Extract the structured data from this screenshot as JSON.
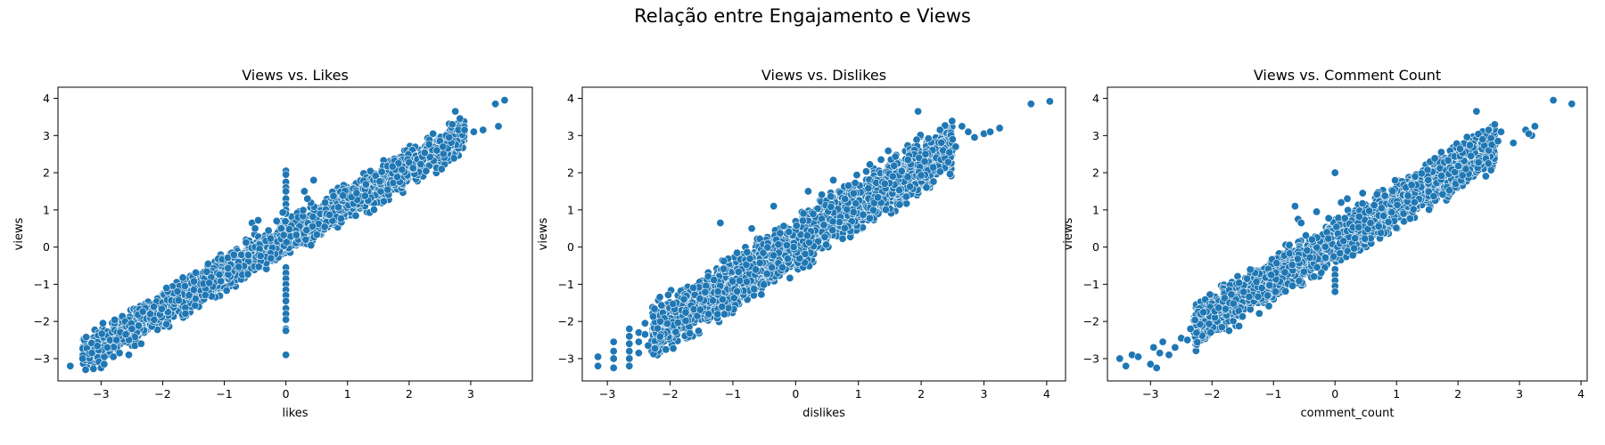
{
  "figure": {
    "suptitle": "Relação entre Engajamento e Views"
  },
  "style": {
    "point_color": "#1f77b4",
    "point_edge": "#ffffff"
  },
  "chart_data": [
    {
      "type": "scatter",
      "title": "Views vs. Likes",
      "xlabel": "likes",
      "ylabel": "views",
      "xlim": [
        -3.7,
        4.0
      ],
      "ylim": [
        -3.6,
        4.3
      ],
      "xticks": [
        {
          "v": -3,
          "label": "−3"
        },
        {
          "v": -2,
          "label": "−2"
        },
        {
          "v": -1,
          "label": "−1"
        },
        {
          "v": 0,
          "label": "0"
        },
        {
          "v": 1,
          "label": "1"
        },
        {
          "v": 2,
          "label": "2"
        },
        {
          "v": 3,
          "label": "3"
        }
      ],
      "yticks": [
        {
          "v": -3,
          "label": "−3"
        },
        {
          "v": -2,
          "label": "−2"
        },
        {
          "v": -1,
          "label": "−1"
        },
        {
          "v": 0,
          "label": "0"
        },
        {
          "v": 1,
          "label": "1"
        },
        {
          "v": 2,
          "label": "2"
        },
        {
          "v": 3,
          "label": "3"
        },
        {
          "v": 4,
          "label": "4"
        }
      ],
      "band": {
        "slope": 0.95,
        "intercept": 0.25,
        "spread": 0.22,
        "x_from": -3.3,
        "x_to": 2.9
      },
      "points": [
        [
          -3.5,
          -3.2
        ],
        [
          -3.3,
          -3.0
        ],
        [
          -3.15,
          -2.85
        ],
        [
          -3.0,
          -3.25
        ],
        [
          -2.95,
          -3.15
        ],
        [
          -2.9,
          -2.7
        ],
        [
          -2.8,
          -2.95
        ],
        [
          -2.75,
          -2.5
        ],
        [
          -2.7,
          -2.85
        ],
        [
          -2.6,
          -2.35
        ],
        [
          -2.55,
          -2.9
        ],
        [
          -2.5,
          -2.2
        ],
        [
          -2.45,
          -2.65
        ],
        [
          -2.35,
          -2.6
        ],
        [
          0,
          2.05
        ],
        [
          0,
          1.95
        ],
        [
          0,
          1.75
        ],
        [
          0,
          1.6
        ],
        [
          0,
          1.5
        ],
        [
          0,
          1.3
        ],
        [
          0,
          1.15
        ],
        [
          0,
          1.0
        ],
        [
          0,
          0.9
        ],
        [
          0,
          -0.55
        ],
        [
          0,
          -0.7
        ],
        [
          0,
          -0.85
        ],
        [
          0,
          -1.0
        ],
        [
          0,
          -1.15
        ],
        [
          0,
          -1.3
        ],
        [
          0,
          -1.45
        ],
        [
          0,
          -1.65
        ],
        [
          0,
          -1.8
        ],
        [
          0,
          -1.95
        ],
        [
          0,
          -2.2
        ],
        [
          0,
          -2.25
        ],
        [
          0,
          -2.9
        ],
        [
          -0.55,
          0.65
        ],
        [
          -0.45,
          0.72
        ],
        [
          -0.5,
          0.5
        ],
        [
          -0.15,
          0.7
        ],
        [
          -0.05,
          0.93
        ],
        [
          0.3,
          1.5
        ],
        [
          0.35,
          1.3
        ],
        [
          0.45,
          1.8
        ],
        [
          2.6,
          3.0
        ],
        [
          2.7,
          3.3
        ],
        [
          2.75,
          3.65
        ],
        [
          2.8,
          3.15
        ],
        [
          2.9,
          3.15
        ],
        [
          3.05,
          3.1
        ],
        [
          3.2,
          3.15
        ],
        [
          3.4,
          3.85
        ],
        [
          3.45,
          3.25
        ],
        [
          3.55,
          3.95
        ],
        [
          2.45,
          2.6
        ],
        [
          2.5,
          2.85
        ],
        [
          2.55,
          2.7
        ],
        [
          2.65,
          2.95
        ]
      ]
    },
    {
      "type": "scatter",
      "title": "Views vs. Dislikes",
      "xlabel": "dislikes",
      "ylabel": "views",
      "xlim": [
        -3.4,
        4.3
      ],
      "ylim": [
        -3.6,
        4.3
      ],
      "xticks": [
        {
          "v": -3,
          "label": "−3"
        },
        {
          "v": -2,
          "label": "−2"
        },
        {
          "v": -1,
          "label": "−1"
        },
        {
          "v": 0,
          "label": "0"
        },
        {
          "v": 1,
          "label": "1"
        },
        {
          "v": 2,
          "label": "2"
        },
        {
          "v": 3,
          "label": "3"
        },
        {
          "v": 4,
          "label": "4"
        }
      ],
      "yticks": [
        {
          "v": -3,
          "label": "−3"
        },
        {
          "v": -2,
          "label": "−2"
        },
        {
          "v": -1,
          "label": "−1"
        },
        {
          "v": 0,
          "label": "0"
        },
        {
          "v": 1,
          "label": "1"
        },
        {
          "v": 2,
          "label": "2"
        },
        {
          "v": 3,
          "label": "3"
        },
        {
          "v": 4,
          "label": "4"
        }
      ],
      "band": {
        "slope": 1.05,
        "intercept": 0.1,
        "spread": 0.32,
        "x_from": -2.3,
        "x_to": 2.5
      },
      "points": [
        [
          -3.15,
          -2.95
        ],
        [
          -3.15,
          -3.2
        ],
        [
          -2.9,
          -2.55
        ],
        [
          -2.9,
          -2.8
        ],
        [
          -2.9,
          -3.0
        ],
        [
          -2.9,
          -3.25
        ],
        [
          -2.65,
          -2.2
        ],
        [
          -2.65,
          -2.4
        ],
        [
          -2.65,
          -2.6
        ],
        [
          -2.65,
          -2.8
        ],
        [
          -2.65,
          -3.0
        ],
        [
          -2.65,
          -3.2
        ],
        [
          -2.5,
          -2.3
        ],
        [
          -2.5,
          -2.55
        ],
        [
          -2.5,
          -2.85
        ],
        [
          -2.4,
          -2.05
        ],
        [
          -2.4,
          -2.35
        ],
        [
          -2.35,
          -2.65
        ],
        [
          -1.2,
          0.65
        ],
        [
          -0.7,
          0.5
        ],
        [
          -0.35,
          1.1
        ],
        [
          0.2,
          1.5
        ],
        [
          0.6,
          1.8
        ],
        [
          1.95,
          3.65
        ],
        [
          2.3,
          3.15
        ],
        [
          2.5,
          2.9
        ],
        [
          2.65,
          3.25
        ],
        [
          2.75,
          3.1
        ],
        [
          2.85,
          2.95
        ],
        [
          3.0,
          3.05
        ],
        [
          3.1,
          3.1
        ],
        [
          3.25,
          3.2
        ],
        [
          3.75,
          3.85
        ],
        [
          4.05,
          3.92
        ],
        [
          2.35,
          2.6
        ],
        [
          2.45,
          2.55
        ],
        [
          2.55,
          2.7
        ]
      ]
    },
    {
      "type": "scatter",
      "title": "Views vs. Comment Count",
      "xlabel": "comment_count",
      "ylabel": "views",
      "xlim": [
        -3.7,
        4.1
      ],
      "ylim": [
        -3.6,
        4.3
      ],
      "xticks": [
        {
          "v": -3,
          "label": "−3"
        },
        {
          "v": -2,
          "label": "−2"
        },
        {
          "v": -1,
          "label": "−1"
        },
        {
          "v": 0,
          "label": "0"
        },
        {
          "v": 1,
          "label": "1"
        },
        {
          "v": 2,
          "label": "2"
        },
        {
          "v": 3,
          "label": "3"
        },
        {
          "v": 4,
          "label": "4"
        }
      ],
      "yticks": [
        {
          "v": -3,
          "label": "−3"
        },
        {
          "v": -2,
          "label": "−2"
        },
        {
          "v": -1,
          "label": "−1"
        },
        {
          "v": 0,
          "label": "0"
        },
        {
          "v": 1,
          "label": "1"
        },
        {
          "v": 2,
          "label": "2"
        },
        {
          "v": 3,
          "label": "3"
        },
        {
          "v": 4,
          "label": "4"
        }
      ],
      "band": {
        "slope": 1.0,
        "intercept": 0.15,
        "spread": 0.26,
        "x_from": -2.3,
        "x_to": 2.6
      },
      "points": [
        [
          -3.5,
          -3.0
        ],
        [
          -3.4,
          -3.2
        ],
        [
          -3.3,
          -2.9
        ],
        [
          -3.2,
          -2.95
        ],
        [
          -3.0,
          -3.15
        ],
        [
          -2.95,
          -2.7
        ],
        [
          -2.9,
          -3.25
        ],
        [
          -2.85,
          -2.85
        ],
        [
          -2.8,
          -2.55
        ],
        [
          -2.7,
          -2.9
        ],
        [
          -2.6,
          -2.7
        ],
        [
          -2.5,
          -2.45
        ],
        [
          -2.4,
          -2.5
        ],
        [
          -2.35,
          -2.2
        ],
        [
          0,
          -0.6
        ],
        [
          0,
          -0.75
        ],
        [
          0,
          -0.9
        ],
        [
          0,
          -1.05
        ],
        [
          0,
          -1.2
        ],
        [
          0,
          2.0
        ],
        [
          0.2,
          1.3
        ],
        [
          0.1,
          1.2
        ],
        [
          -0.65,
          1.1
        ],
        [
          -0.6,
          0.75
        ],
        [
          -0.55,
          0.65
        ],
        [
          -0.3,
          0.95
        ],
        [
          0.45,
          1.45
        ],
        [
          2.3,
          3.65
        ],
        [
          2.4,
          2.9
        ],
        [
          2.7,
          3.1
        ],
        [
          2.9,
          2.8
        ],
        [
          3.1,
          3.15
        ],
        [
          3.2,
          3.0
        ],
        [
          3.25,
          3.25
        ],
        [
          3.15,
          3.05
        ],
        [
          3.55,
          3.95
        ],
        [
          3.85,
          3.85
        ],
        [
          2.5,
          2.6
        ],
        [
          2.55,
          2.75
        ],
        [
          2.65,
          2.85
        ]
      ]
    }
  ]
}
